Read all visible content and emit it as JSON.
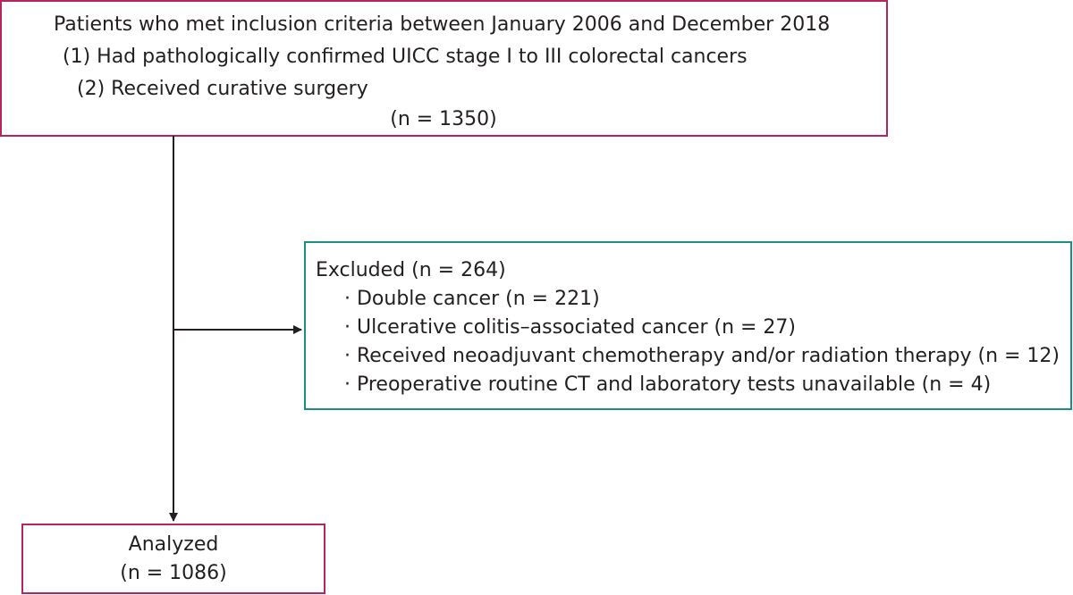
{
  "nodes": [
    {
      "lines": [
        "Patients who met inclusion criteria between January 2006 and December 2018",
        "(1) Had pathologically confirmed UICC stage I to III colorectal cancers",
        "(2) Received curative surgery",
        "(n = 1350)"
      ]
    },
    {
      "lines": [
        "Excluded (n = 264)",
        "· Double cancer (n = 221)",
        "· Ulcerative colitis–associated cancer (n = 27)",
        "· Received neoadjuvant chemotherapy and/or radiation therapy (n = 12)",
        "· Preoperative routine CT and laboratory tests unavailable (n = 4)"
      ]
    },
    {
      "lines": [
        "Analyzed",
        "(n = 1086)"
      ]
    }
  ]
}
